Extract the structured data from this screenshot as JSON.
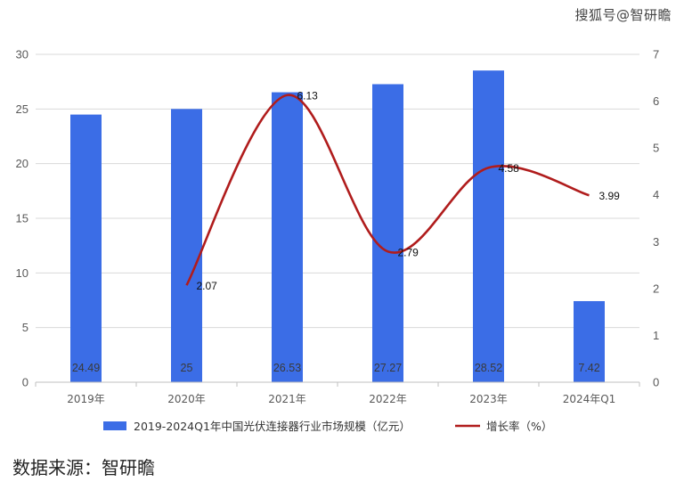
{
  "watermark": "搜狐号@智研瞻",
  "source": "数据来源：智研瞻",
  "chart_data": {
    "type": "bar",
    "categories": [
      "2019年",
      "2020年",
      "2021年",
      "2022年",
      "2023年",
      "2024年Q1"
    ],
    "series": [
      {
        "name": "2019-2024Q1年中国光伏连接器行业市场规模（亿元）",
        "type": "bar",
        "axis": "left",
        "values": [
          24.49,
          25,
          26.53,
          27.27,
          28.52,
          7.42
        ],
        "labels": [
          "24.49",
          "25",
          "26.53",
          "27.27",
          "28.52",
          "7.42"
        ],
        "color": "#3b6de6"
      },
      {
        "name": "增长率（%）",
        "type": "line",
        "axis": "right",
        "values": [
          null,
          2.07,
          6.13,
          2.79,
          4.58,
          3.99
        ],
        "labels": [
          null,
          "2.07",
          "6.13",
          "2.79",
          "4.58",
          "3.99"
        ],
        "color": "#b01c1c"
      }
    ],
    "y_left": {
      "min": 0,
      "max": 30,
      "ticks": [
        0,
        5,
        10,
        15,
        20,
        25,
        30
      ]
    },
    "y_right": {
      "min": 0,
      "max": 7,
      "ticks": [
        0,
        1,
        2,
        3,
        4,
        5,
        6,
        7
      ]
    },
    "grid": true,
    "legend": "bottom"
  }
}
